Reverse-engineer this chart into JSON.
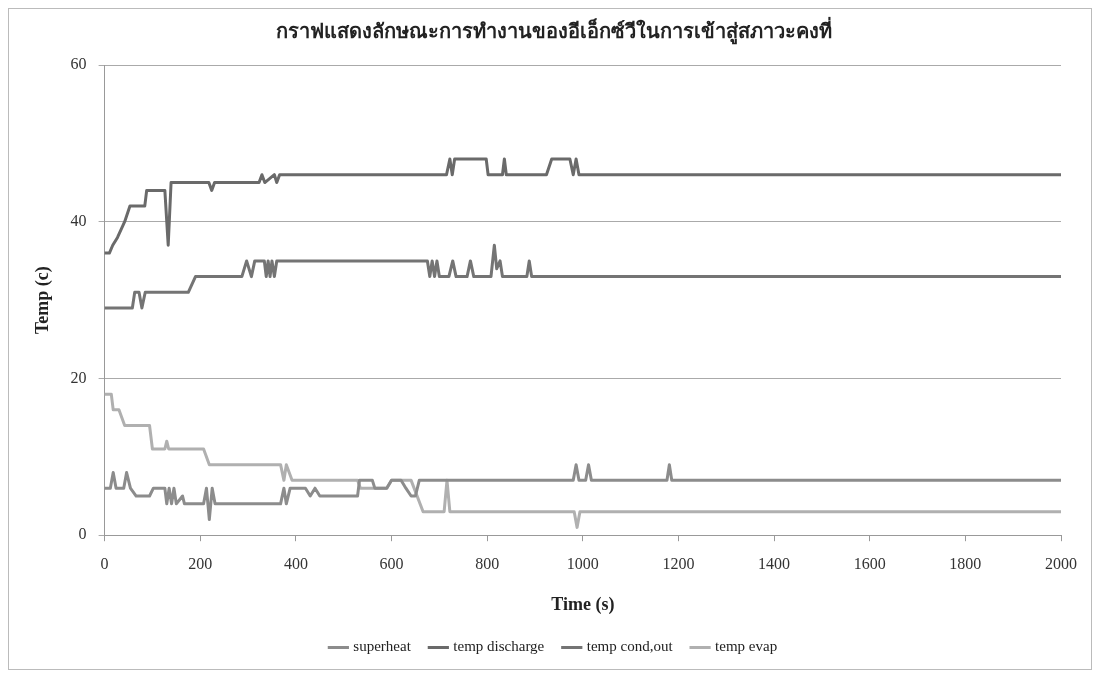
{
  "chart_data": {
    "type": "line",
    "title": "กราฟแสดงลักษณะการทำงานของอีเอ็กซ์วีในการเข้าสู่สภาวะคงที่",
    "xlabel": "Time (s)",
    "ylabel": "Temp (c)",
    "xlim": [
      0,
      2000
    ],
    "xticks": [
      0,
      200,
      400,
      600,
      800,
      1000,
      1200,
      1400,
      1600,
      1800,
      2000
    ],
    "ylim": [
      0,
      60
    ],
    "yticks": [
      0,
      20,
      40,
      60
    ],
    "grid": "y",
    "legend": "bottom",
    "marker": "none",
    "line_style": "solid",
    "series": [
      {
        "name": "superheat",
        "color": "#8c8c8c",
        "x": [
          0,
          12,
          18,
          24,
          40,
          46,
          54,
          66,
          94,
          102,
          126,
          130,
          135,
          140,
          145,
          150,
          163,
          167,
          207,
          213,
          219,
          225,
          231,
          368,
          375,
          380,
          388,
          396,
          420,
          430,
          440,
          450,
          456,
          529,
          533,
          560,
          565,
          590,
          600,
          620,
          630,
          641,
          650,
          658,
          980,
          986,
          992,
          1006,
          1012,
          1018,
          1176,
          1181,
          1186,
          2000
        ],
        "values": [
          6,
          6,
          8,
          6,
          6,
          8,
          6,
          5,
          5,
          6,
          6,
          4,
          6,
          4,
          6,
          4,
          5,
          4,
          4,
          6,
          2,
          6,
          4,
          4,
          6,
          4,
          6,
          6,
          6,
          5,
          6,
          5,
          5,
          5,
          7,
          7,
          6,
          6,
          7,
          7,
          6,
          5,
          5,
          7,
          7,
          9,
          7,
          7,
          9,
          7,
          7,
          9,
          7,
          7
        ]
      },
      {
        "name": "temp discharge",
        "color": "#6a6a6a",
        "x": [
          0,
          10,
          17,
          27,
          42,
          53,
          84,
          88,
          126,
          133,
          139,
          218,
          224,
          230,
          323,
          329,
          335,
          355,
          360,
          366,
          715,
          722,
          727,
          732,
          798,
          802,
          832,
          836,
          840,
          924,
          935,
          973,
          980,
          986,
          992,
          2000
        ],
        "values": [
          36,
          36,
          37,
          38,
          40,
          42,
          42,
          44,
          44,
          37,
          45,
          45,
          44,
          45,
          45,
          46,
          45,
          46,
          45,
          46,
          46,
          48,
          46,
          48,
          48,
          46,
          46,
          48,
          46,
          46,
          48,
          48,
          46,
          48,
          46,
          46
        ]
      },
      {
        "name": "temp cond,out",
        "color": "#747474",
        "x": [
          0,
          58,
          63,
          72,
          78,
          85,
          175,
          190,
          287,
          297,
          307,
          314,
          334,
          338,
          342,
          346,
          350,
          355,
          360,
          675,
          680,
          685,
          690,
          695,
          700,
          710,
          720,
          728,
          735,
          758,
          765,
          772,
          808,
          815,
          820,
          827,
          832,
          883,
          888,
          893,
          2000
        ],
        "values": [
          29,
          29,
          31,
          31,
          29,
          31,
          31,
          33,
          33,
          35,
          33,
          35,
          35,
          33,
          35,
          33,
          35,
          33,
          35,
          35,
          33,
          35,
          33,
          35,
          33,
          33,
          33,
          35,
          33,
          33,
          35,
          33,
          33,
          37,
          34,
          35,
          33,
          33,
          35,
          33,
          33
        ]
      },
      {
        "name": "temp evap",
        "color": "#b0b0b0",
        "x": [
          0,
          14,
          18,
          30,
          42,
          94,
          100,
          126,
          130,
          134,
          207,
          219,
          368,
          375,
          380,
          392,
          529,
          535,
          590,
          600,
          641,
          666,
          710,
          716,
          722,
          982,
          988,
          994,
          2000
        ],
        "values": [
          18,
          18,
          16,
          16,
          14,
          14,
          11,
          11,
          12,
          11,
          11,
          9,
          9,
          7,
          9,
          7,
          7,
          6,
          6,
          7,
          7,
          3,
          3,
          7,
          3,
          3,
          1,
          3,
          3
        ]
      }
    ]
  }
}
